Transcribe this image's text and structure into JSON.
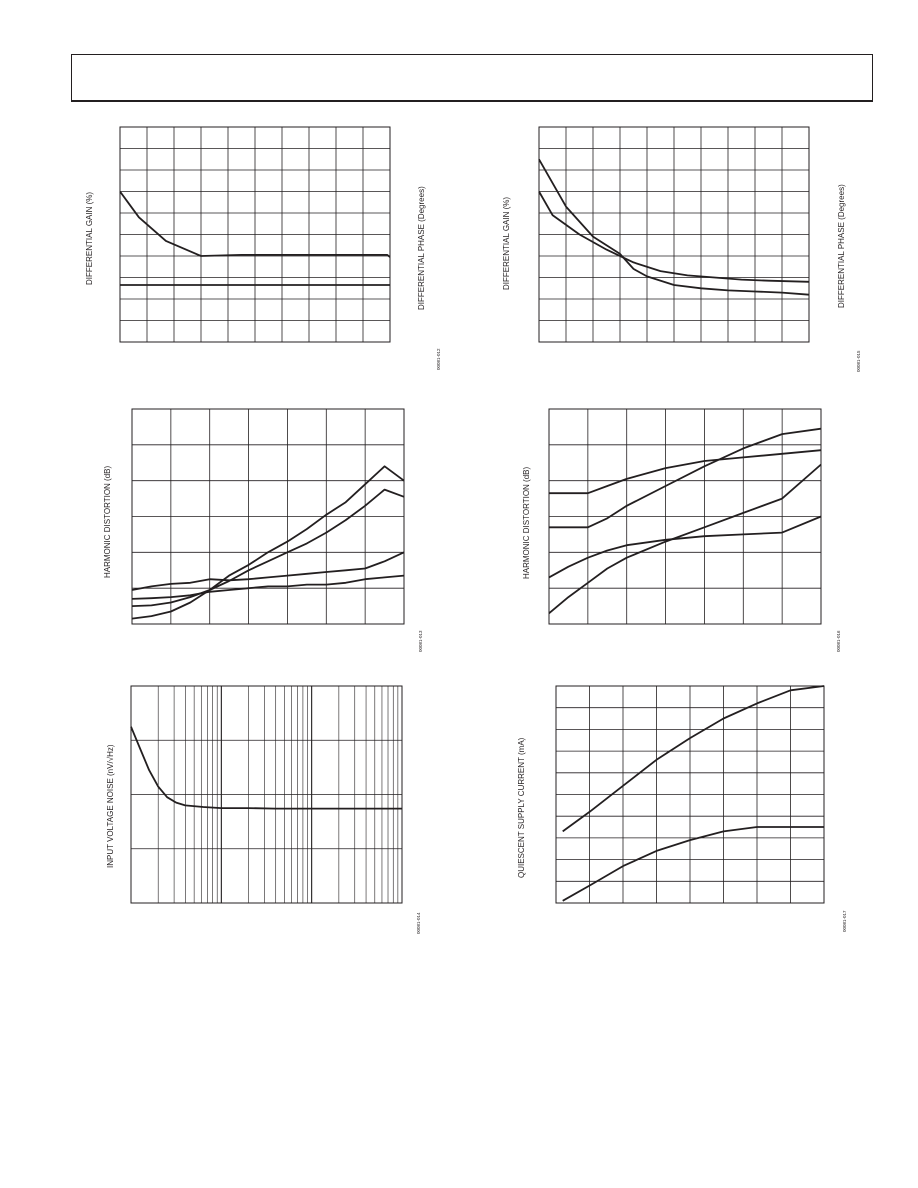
{
  "header": {
    "text": ""
  },
  "panels": [
    {
      "y_label": "DIFFERENTIAL GAIN (%)",
      "right_label": "DIFFERENTIAL  PHASE (Degrees)",
      "fig_id": "00081-012"
    },
    {
      "y_label": "DIFFERENTIAL GAIN (%)",
      "right_label": "DIFFERENTIAL PHASE (Degrees)",
      "fig_id": "00081-015"
    },
    {
      "y_label": "HARMONIC DISTORTION (dB)",
      "right_label": "",
      "fig_id": "00081-013"
    },
    {
      "y_label": "HARMONIC DISTORTION (dB)",
      "right_label": "",
      "fig_id": "00081-016"
    },
    {
      "y_label": "INPUT VOLTAGE NOISE (nV/√Hz)",
      "right_label": "",
      "fig_id": "00081-014"
    },
    {
      "y_label": "QUIESCENT SUPPLY CURRENT (mA)",
      "right_label": "",
      "fig_id": "00081-017"
    }
  ],
  "chart_data": [
    {
      "type": "line",
      "title": "",
      "ylabel": "DIFFERENTIAL GAIN (%)",
      "y2label": "DIFFERENTIAL  PHASE (Degrees)",
      "grid": {
        "cols": 10,
        "rows": 10,
        "xscale": "linear"
      },
      "xlim": [
        0,
        10
      ],
      "ylim": [
        0,
        10
      ],
      "series": [
        {
          "x": [
            0,
            0.7,
            1.7,
            3.0,
            4.5,
            6,
            7.5,
            9,
            9.9,
            10
          ],
          "y": [
            7.0,
            5.8,
            4.7,
            4.0,
            4.05,
            4.05,
            4.05,
            4.05,
            4.05,
            3.95
          ]
        },
        {
          "x": [
            0,
            10
          ],
          "y": [
            2.65,
            2.65
          ]
        }
      ],
      "annotations": []
    },
    {
      "type": "line",
      "title": "",
      "ylabel": "DIFFERENTIAL GAIN (%)",
      "y2label": "DIFFERENTIAL PHASE (Degrees)",
      "grid": {
        "cols": 10,
        "rows": 10,
        "xscale": "linear"
      },
      "xlim": [
        0,
        10
      ],
      "ylim": [
        0,
        10
      ],
      "series": [
        {
          "x": [
            0,
            1,
            2,
            3,
            3.5,
            4,
            5,
            6,
            7,
            8,
            9,
            10
          ],
          "y": [
            8.5,
            6.3,
            4.9,
            4.1,
            3.4,
            3.05,
            2.65,
            2.5,
            2.4,
            2.35,
            2.3,
            2.2
          ]
        },
        {
          "x": [
            0,
            0.5,
            1.5,
            2.5,
            3.5,
            4.5,
            5.5,
            6.5,
            7.5,
            8.5,
            10
          ],
          "y": [
            7.0,
            5.9,
            5.0,
            4.3,
            3.7,
            3.3,
            3.1,
            3.0,
            2.9,
            2.85,
            2.8
          ]
        }
      ],
      "annotations": []
    },
    {
      "type": "line",
      "title": "",
      "ylabel": "HARMONIC DISTORTION (dB)",
      "grid": {
        "cols": 7,
        "rows": 6,
        "xscale": "linear"
      },
      "xlim": [
        0,
        7
      ],
      "ylim": [
        0,
        6
      ],
      "series": [
        {
          "x": [
            0,
            0.5,
            1,
            1.5,
            2,
            2.5,
            3,
            3.5,
            4,
            4.5,
            5,
            5.5,
            6,
            6.5,
            7
          ],
          "y": [
            0.95,
            1.05,
            1.12,
            1.15,
            1.25,
            1.22,
            1.25,
            1.3,
            1.35,
            1.4,
            1.45,
            1.5,
            1.55,
            1.75,
            2.0
          ]
        },
        {
          "x": [
            0,
            0.5,
            1,
            1.5,
            2,
            2.5,
            3,
            3.5,
            4,
            4.5,
            5,
            5.5,
            6,
            6.5,
            7
          ],
          "y": [
            0.7,
            0.72,
            0.75,
            0.8,
            0.9,
            0.95,
            1.0,
            1.05,
            1.05,
            1.1,
            1.1,
            1.15,
            1.25,
            1.3,
            1.35
          ]
        },
        {
          "x": [
            0,
            0.5,
            1,
            1.5,
            2,
            2.5,
            3,
            3.5,
            4,
            4.5,
            5,
            5.5,
            6,
            6.5,
            7
          ],
          "y": [
            0.15,
            0.22,
            0.35,
            0.6,
            0.95,
            1.35,
            1.65,
            2.0,
            2.3,
            2.65,
            3.05,
            3.4,
            3.9,
            4.4,
            4.0
          ]
        },
        {
          "x": [
            0,
            0.5,
            1,
            1.5,
            2,
            2.5,
            3,
            3.5,
            4,
            4.5,
            5,
            5.5,
            6,
            6.5,
            7
          ],
          "y": [
            0.5,
            0.52,
            0.6,
            0.75,
            0.95,
            1.2,
            1.5,
            1.75,
            2.0,
            2.25,
            2.55,
            2.9,
            3.3,
            3.75,
            3.55
          ]
        }
      ],
      "annotations": []
    },
    {
      "type": "line",
      "title": "",
      "ylabel": "HARMONIC DISTORTION (dB)",
      "grid": {
        "cols": 7,
        "rows": 6,
        "xscale": "linear"
      },
      "xlim": [
        0,
        7
      ],
      "ylim": [
        0,
        6
      ],
      "series": [
        {
          "x": [
            0,
            0.5,
            1,
            1.5,
            2,
            3,
            4,
            5,
            6,
            7
          ],
          "y": [
            3.65,
            3.65,
            3.65,
            3.85,
            4.05,
            4.35,
            4.55,
            4.65,
            4.75,
            4.85
          ]
        },
        {
          "x": [
            0,
            0.5,
            1,
            1.5,
            2,
            3,
            4,
            5,
            6,
            7
          ],
          "y": [
            2.7,
            2.7,
            2.7,
            2.95,
            3.3,
            3.85,
            4.4,
            4.9,
            5.3,
            5.45
          ]
        },
        {
          "x": [
            0,
            0.5,
            1,
            1.5,
            2,
            3,
            4,
            5,
            6,
            7
          ],
          "y": [
            1.3,
            1.6,
            1.85,
            2.05,
            2.2,
            2.35,
            2.45,
            2.5,
            2.55,
            3.0
          ]
        },
        {
          "x": [
            0,
            0.5,
            1,
            1.5,
            2,
            3,
            4,
            5,
            6,
            7
          ],
          "y": [
            0.3,
            0.75,
            1.15,
            1.55,
            1.85,
            2.3,
            2.7,
            3.1,
            3.5,
            4.45
          ]
        }
      ],
      "annotations": []
    },
    {
      "type": "line",
      "title": "",
      "ylabel": "INPUT VOLTAGE NOISE (nV/√Hz)",
      "grid": {
        "decades": 3,
        "rows": 4,
        "xscale": "log"
      },
      "xlim": [
        0,
        3
      ],
      "ylim": [
        0,
        4
      ],
      "series": [
        {
          "x": [
            0,
            0.1,
            0.2,
            0.3,
            0.4,
            0.5,
            0.6,
            0.8,
            1.0,
            1.3,
            1.6,
            2.0,
            2.5,
            3.0
          ],
          "y": [
            3.25,
            2.85,
            2.45,
            2.15,
            1.95,
            1.85,
            1.8,
            1.77,
            1.75,
            1.75,
            1.74,
            1.74,
            1.74,
            1.74
          ]
        }
      ],
      "annotations": []
    },
    {
      "type": "line",
      "title": "",
      "ylabel": "QUIESCENT SUPPLY CURRENT (mA)",
      "grid": {
        "cols": 8,
        "rows": 10,
        "xscale": "linear"
      },
      "xlim": [
        0,
        8
      ],
      "ylim": [
        0,
        10
      ],
      "series": [
        {
          "x": [
            0.2,
            1,
            2,
            3,
            4,
            5,
            6,
            7,
            8
          ],
          "y": [
            3.3,
            4.2,
            5.4,
            6.6,
            7.6,
            8.5,
            9.2,
            9.8,
            10.0
          ]
        },
        {
          "x": [
            0.2,
            1,
            2,
            3,
            4,
            5,
            6,
            7,
            8
          ],
          "y": [
            0.1,
            0.8,
            1.7,
            2.4,
            2.9,
            3.3,
            3.5,
            3.5,
            3.5
          ]
        }
      ],
      "annotations": []
    }
  ]
}
